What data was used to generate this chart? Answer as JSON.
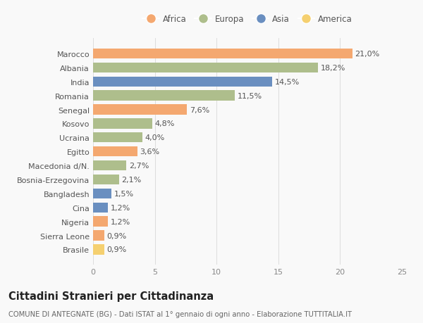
{
  "categories": [
    "Brasile",
    "Sierra Leone",
    "Nigeria",
    "Cina",
    "Bangladesh",
    "Bosnia-Erzegovina",
    "Macedonia d/N.",
    "Egitto",
    "Ucraina",
    "Kosovo",
    "Senegal",
    "Romania",
    "India",
    "Albania",
    "Marocco"
  ],
  "values": [
    0.9,
    0.9,
    1.2,
    1.2,
    1.5,
    2.1,
    2.7,
    3.6,
    4.0,
    4.8,
    7.6,
    11.5,
    14.5,
    18.2,
    21.0
  ],
  "labels": [
    "0,9%",
    "0,9%",
    "1,2%",
    "1,2%",
    "1,5%",
    "2,1%",
    "2,7%",
    "3,6%",
    "4,0%",
    "4,8%",
    "7,6%",
    "11,5%",
    "14,5%",
    "18,2%",
    "21,0%"
  ],
  "continents": [
    "America",
    "Africa",
    "Africa",
    "Asia",
    "Asia",
    "Europa",
    "Europa",
    "Africa",
    "Europa",
    "Europa",
    "Africa",
    "Europa",
    "Asia",
    "Europa",
    "Africa"
  ],
  "continent_colors": {
    "Africa": "#F4A870",
    "Europa": "#AEBE8C",
    "Asia": "#6A8FC0",
    "America": "#F5D070"
  },
  "legend_order": [
    "Africa",
    "Europa",
    "Asia",
    "America"
  ],
  "xlim": [
    0,
    25
  ],
  "xticks": [
    0,
    5,
    10,
    15,
    20,
    25
  ],
  "title": "Cittadini Stranieri per Cittadinanza",
  "subtitle": "COMUNE DI ANTEGNATE (BG) - Dati ISTAT al 1° gennaio di ogni anno - Elaborazione TUTTITALIA.IT",
  "bg_color": "#f9f9f9",
  "bar_height": 0.72,
  "label_fontsize": 8.0,
  "ytick_fontsize": 8.0,
  "xtick_fontsize": 8.0,
  "title_fontsize": 10.5,
  "subtitle_fontsize": 7.2,
  "legend_fontsize": 8.5
}
